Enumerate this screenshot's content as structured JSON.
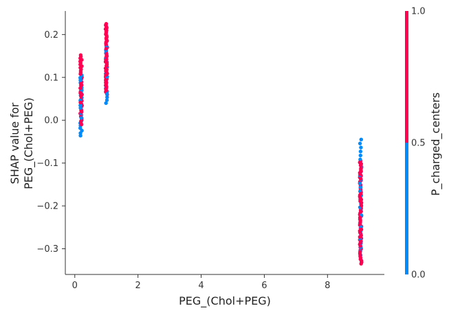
{
  "chart_data": {
    "type": "scatter",
    "title": "",
    "xlabel": "PEG_(Chol+PEG)",
    "ylabel_lines": [
      "SHAP value for",
      "PEG_(Chol+PEG)"
    ],
    "xlim": [
      -0.3,
      9.8
    ],
    "ylim": [
      -0.36,
      0.255
    ],
    "x_ticks": [
      0,
      2,
      4,
      6,
      8
    ],
    "x_tick_labels": [
      "0",
      "2",
      "4",
      "6",
      "8"
    ],
    "y_ticks": [
      -0.3,
      -0.2,
      -0.1,
      0.0,
      0.1,
      0.2
    ],
    "y_tick_labels": [
      "−0.3",
      "−0.2",
      "−0.1",
      "0.0",
      "0.1",
      "0.2"
    ],
    "grid": false,
    "colorbar": {
      "label": "P_charged_centers",
      "range": [
        0.0,
        1.0
      ],
      "tick_values": [
        0.0,
        0.5,
        1.0
      ],
      "tick_labels": [
        "0.0",
        "0.5",
        "1.0"
      ],
      "low_color": "#008bfb",
      "high_color": "#ff0052"
    },
    "groups": [
      {
        "x": 0.2,
        "high": {
          "min": -0.01,
          "max": 0.152,
          "n": 45
        },
        "low": {
          "min": -0.036,
          "max": 0.105,
          "n": 25
        }
      },
      {
        "x": 1.0,
        "high": {
          "min": 0.06,
          "max": 0.225,
          "n": 55
        },
        "low": {
          "min": 0.04,
          "max": 0.17,
          "n": 20
        }
      },
      {
        "x": 9.05,
        "high": {
          "min": -0.335,
          "max": -0.095,
          "n": 70
        },
        "low": {
          "min": -0.315,
          "max": -0.045,
          "n": 30
        }
      }
    ]
  }
}
